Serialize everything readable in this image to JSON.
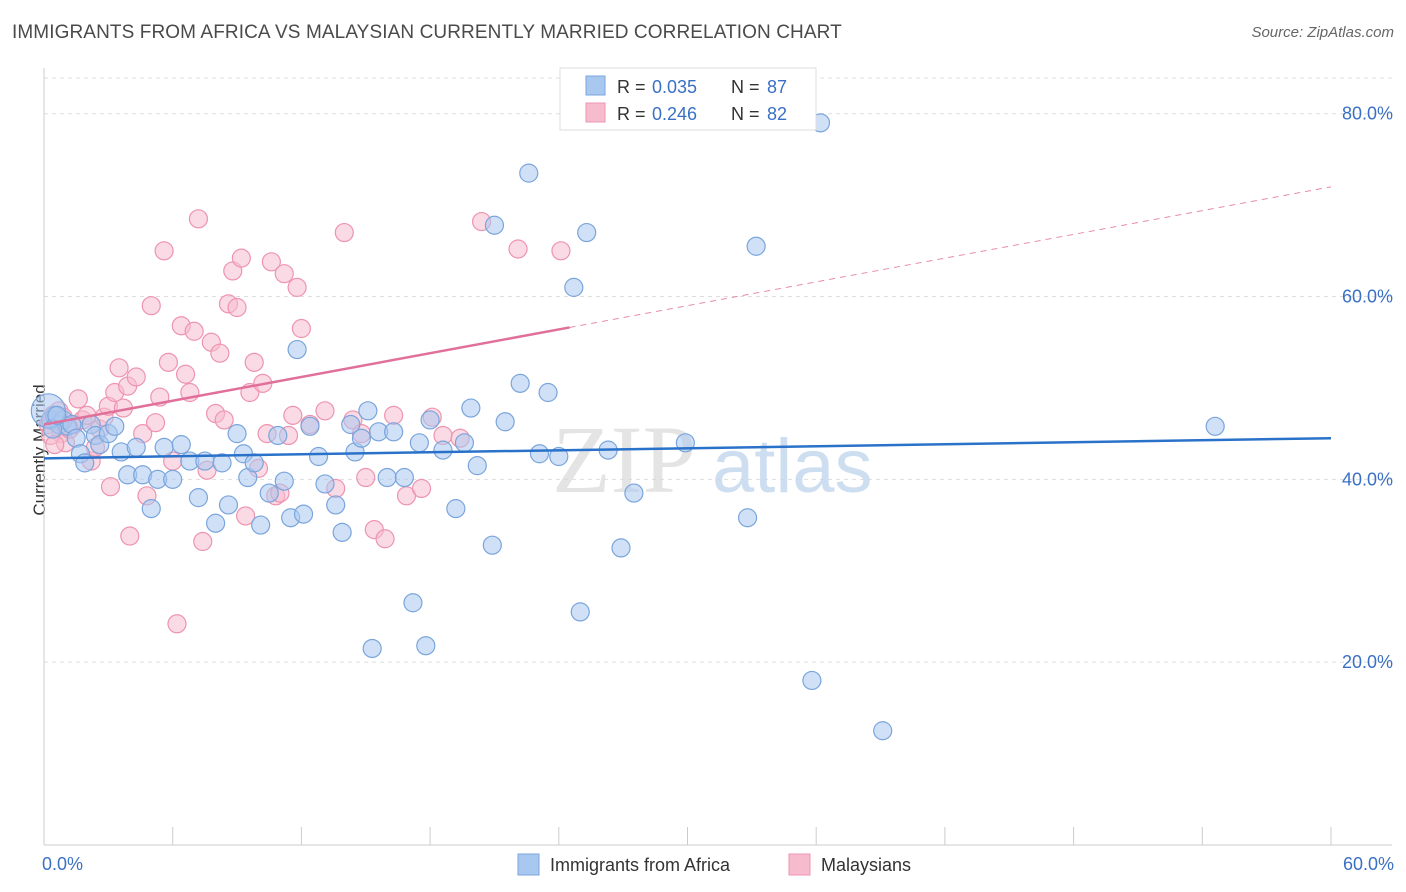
{
  "header": {
    "title": "IMMIGRANTS FROM AFRICA VS MALAYSIAN CURRENTLY MARRIED CORRELATION CHART",
    "source": "Source: ZipAtlas.com"
  },
  "watermark": {
    "zip": "ZIP",
    "atlas": "atlas"
  },
  "legend_top": [
    {
      "r_label": "R = ",
      "r_value": "0.035",
      "n_label": "N = ",
      "n_value": "87"
    },
    {
      "r_label": "R = ",
      "r_value": "0.246",
      "n_label": "N = ",
      "n_value": "82"
    }
  ],
  "colors": {
    "blue_fill": "#a9c8f0",
    "blue_stroke": "#7aa5dc",
    "blue_line": "#2a72c9",
    "pink_fill": "#f6bccd",
    "pink_stroke": "#ee94b0",
    "pink_line": "#e0709a",
    "value_text": "#3a70c4",
    "grid": "#dddddd"
  },
  "chart_data": {
    "type": "scatter",
    "xlabel": "",
    "ylabel": "Currently Married",
    "xlim": [
      0,
      60
    ],
    "ylim": [
      0,
      85
    ],
    "x_ticks": [
      "0.0%",
      "60.0%"
    ],
    "y_ticks": [
      {
        "value": 20,
        "label": "20.0%"
      },
      {
        "value": 40,
        "label": "40.0%"
      },
      {
        "value": 60,
        "label": "60.0%"
      },
      {
        "value": 80,
        "label": "80.0%"
      }
    ],
    "grid": "horizontal dashed",
    "legend_position": "bottom-center",
    "series": [
      {
        "name": "Immigrants from Africa",
        "color": "#a9c8f0",
        "trend": {
          "x": [
            0,
            60
          ],
          "y": [
            42.3,
            44.5
          ],
          "style": "solid"
        },
        "points": [
          [
            0.3,
            46.5
          ],
          [
            0.5,
            47
          ],
          [
            0.7,
            46
          ],
          [
            0.9,
            46.5
          ],
          [
            1.1,
            45.8
          ],
          [
            1.3,
            46
          ],
          [
            1.5,
            44.5
          ],
          [
            1.7,
            42.8
          ],
          [
            1.9,
            41.8
          ],
          [
            2.2,
            46
          ],
          [
            2.4,
            44.8
          ],
          [
            2.6,
            43.8
          ],
          [
            3.0,
            45
          ],
          [
            3.3,
            45.8
          ],
          [
            3.6,
            43
          ],
          [
            3.9,
            40.5
          ],
          [
            4.3,
            43.5
          ],
          [
            4.6,
            40.5
          ],
          [
            5.0,
            36.8
          ],
          [
            5.3,
            40
          ],
          [
            5.6,
            43.5
          ],
          [
            6.0,
            40
          ],
          [
            6.4,
            43.8
          ],
          [
            6.8,
            42
          ],
          [
            7.2,
            38
          ],
          [
            7.5,
            42
          ],
          [
            8.0,
            35.2
          ],
          [
            8.3,
            41.8
          ],
          [
            8.6,
            37.2
          ],
          [
            9.0,
            45
          ],
          [
            9.3,
            42.8
          ],
          [
            9.5,
            40.2
          ],
          [
            9.8,
            41.8
          ],
          [
            10.1,
            35
          ],
          [
            10.5,
            38.5
          ],
          [
            10.9,
            44.8
          ],
          [
            11.2,
            39.8
          ],
          [
            11.5,
            35.8
          ],
          [
            11.8,
            54.2
          ],
          [
            12.1,
            36.2
          ],
          [
            12.4,
            45.8
          ],
          [
            12.8,
            42.5
          ],
          [
            13.1,
            39.5
          ],
          [
            13.6,
            37.2
          ],
          [
            13.9,
            34.2
          ],
          [
            14.3,
            46
          ],
          [
            14.5,
            43
          ],
          [
            14.8,
            44.5
          ],
          [
            15.1,
            47.5
          ],
          [
            15.3,
            21.5
          ],
          [
            15.6,
            45.2
          ],
          [
            16.0,
            40.2
          ],
          [
            16.3,
            45.2
          ],
          [
            16.8,
            40.2
          ],
          [
            17.2,
            26.5
          ],
          [
            17.5,
            44
          ],
          [
            17.8,
            21.8
          ],
          [
            18.0,
            46.5
          ],
          [
            18.6,
            43.2
          ],
          [
            19.2,
            36.8
          ],
          [
            19.6,
            44
          ],
          [
            19.9,
            47.8
          ],
          [
            20.2,
            41.5
          ],
          [
            20.9,
            32.8
          ],
          [
            21.0,
            67.8
          ],
          [
            21.5,
            46.3
          ],
          [
            22.2,
            50.5
          ],
          [
            22.6,
            73.5
          ],
          [
            23.1,
            42.8
          ],
          [
            23.5,
            49.5
          ],
          [
            24.0,
            42.5
          ],
          [
            24.7,
            61
          ],
          [
            25.0,
            25.5
          ],
          [
            25.3,
            67
          ],
          [
            26.3,
            43.2
          ],
          [
            26.9,
            32.5
          ],
          [
            27.5,
            38.5
          ],
          [
            29.9,
            44
          ],
          [
            32.8,
            35.8
          ],
          [
            33.2,
            65.5
          ],
          [
            35.8,
            18
          ],
          [
            36.2,
            79
          ],
          [
            39.1,
            12.5
          ],
          [
            54.6,
            45.8
          ],
          [
            0.2,
            47.5
          ],
          [
            0.4,
            45.5
          ],
          [
            0.6,
            47
          ]
        ]
      },
      {
        "name": "Malaysians",
        "color": "#f6bccd",
        "trend": {
          "x": [
            0,
            60
          ],
          "y": [
            46,
            72
          ],
          "solid_until_x": 24.5,
          "style": "solid-then-dashed"
        },
        "points": [
          [
            0.2,
            46
          ],
          [
            0.4,
            47
          ],
          [
            0.6,
            46.5
          ],
          [
            0.8,
            45
          ],
          [
            1.0,
            44
          ],
          [
            1.2,
            45.5
          ],
          [
            1.4,
            46
          ],
          [
            1.6,
            48.8
          ],
          [
            1.8,
            46.5
          ],
          [
            2.0,
            47
          ],
          [
            2.2,
            42
          ],
          [
            2.4,
            43.5
          ],
          [
            2.6,
            45.5
          ],
          [
            2.8,
            46.8
          ],
          [
            3.0,
            48
          ],
          [
            3.1,
            39.2
          ],
          [
            3.3,
            49.5
          ],
          [
            3.5,
            52.2
          ],
          [
            3.7,
            47.8
          ],
          [
            3.9,
            50.2
          ],
          [
            4.0,
            33.8
          ],
          [
            4.3,
            51.2
          ],
          [
            4.6,
            45
          ],
          [
            4.8,
            38.2
          ],
          [
            5.0,
            59
          ],
          [
            5.2,
            46.2
          ],
          [
            5.4,
            49
          ],
          [
            5.6,
            65
          ],
          [
            5.8,
            52.8
          ],
          [
            6.0,
            42
          ],
          [
            6.2,
            24.2
          ],
          [
            6.4,
            56.8
          ],
          [
            6.6,
            51.5
          ],
          [
            6.8,
            49.5
          ],
          [
            7.0,
            56.2
          ],
          [
            7.2,
            68.5
          ],
          [
            7.4,
            33.2
          ],
          [
            7.6,
            41
          ],
          [
            7.8,
            55
          ],
          [
            8.0,
            47.2
          ],
          [
            8.2,
            53.8
          ],
          [
            8.4,
            46.5
          ],
          [
            8.6,
            59.2
          ],
          [
            8.8,
            62.8
          ],
          [
            9.0,
            58.8
          ],
          [
            9.2,
            64.2
          ],
          [
            9.4,
            36
          ],
          [
            9.6,
            49.5
          ],
          [
            9.8,
            52.8
          ],
          [
            10.0,
            41.2
          ],
          [
            10.2,
            50.5
          ],
          [
            10.4,
            45
          ],
          [
            10.6,
            63.8
          ],
          [
            10.8,
            38.2
          ],
          [
            11.0,
            38.5
          ],
          [
            11.2,
            62.5
          ],
          [
            11.4,
            44.8
          ],
          [
            11.6,
            47
          ],
          [
            11.8,
            61
          ],
          [
            12.0,
            56.5
          ],
          [
            12.4,
            46
          ],
          [
            13.1,
            47.5
          ],
          [
            13.6,
            39
          ],
          [
            14.0,
            67
          ],
          [
            14.4,
            46.5
          ],
          [
            14.8,
            45
          ],
          [
            15.0,
            40.2
          ],
          [
            15.4,
            34.5
          ],
          [
            15.9,
            33.5
          ],
          [
            16.3,
            47
          ],
          [
            16.9,
            38.2
          ],
          [
            17.6,
            39
          ],
          [
            18.1,
            46.8
          ],
          [
            18.6,
            44.8
          ],
          [
            19.4,
            44.5
          ],
          [
            20.4,
            68.2
          ],
          [
            22.1,
            65.2
          ],
          [
            24.1,
            65
          ],
          [
            0.3,
            44.8
          ],
          [
            0.5,
            43.8
          ],
          [
            0.7,
            47.5
          ],
          [
            0.9,
            46.8
          ]
        ]
      }
    ]
  }
}
